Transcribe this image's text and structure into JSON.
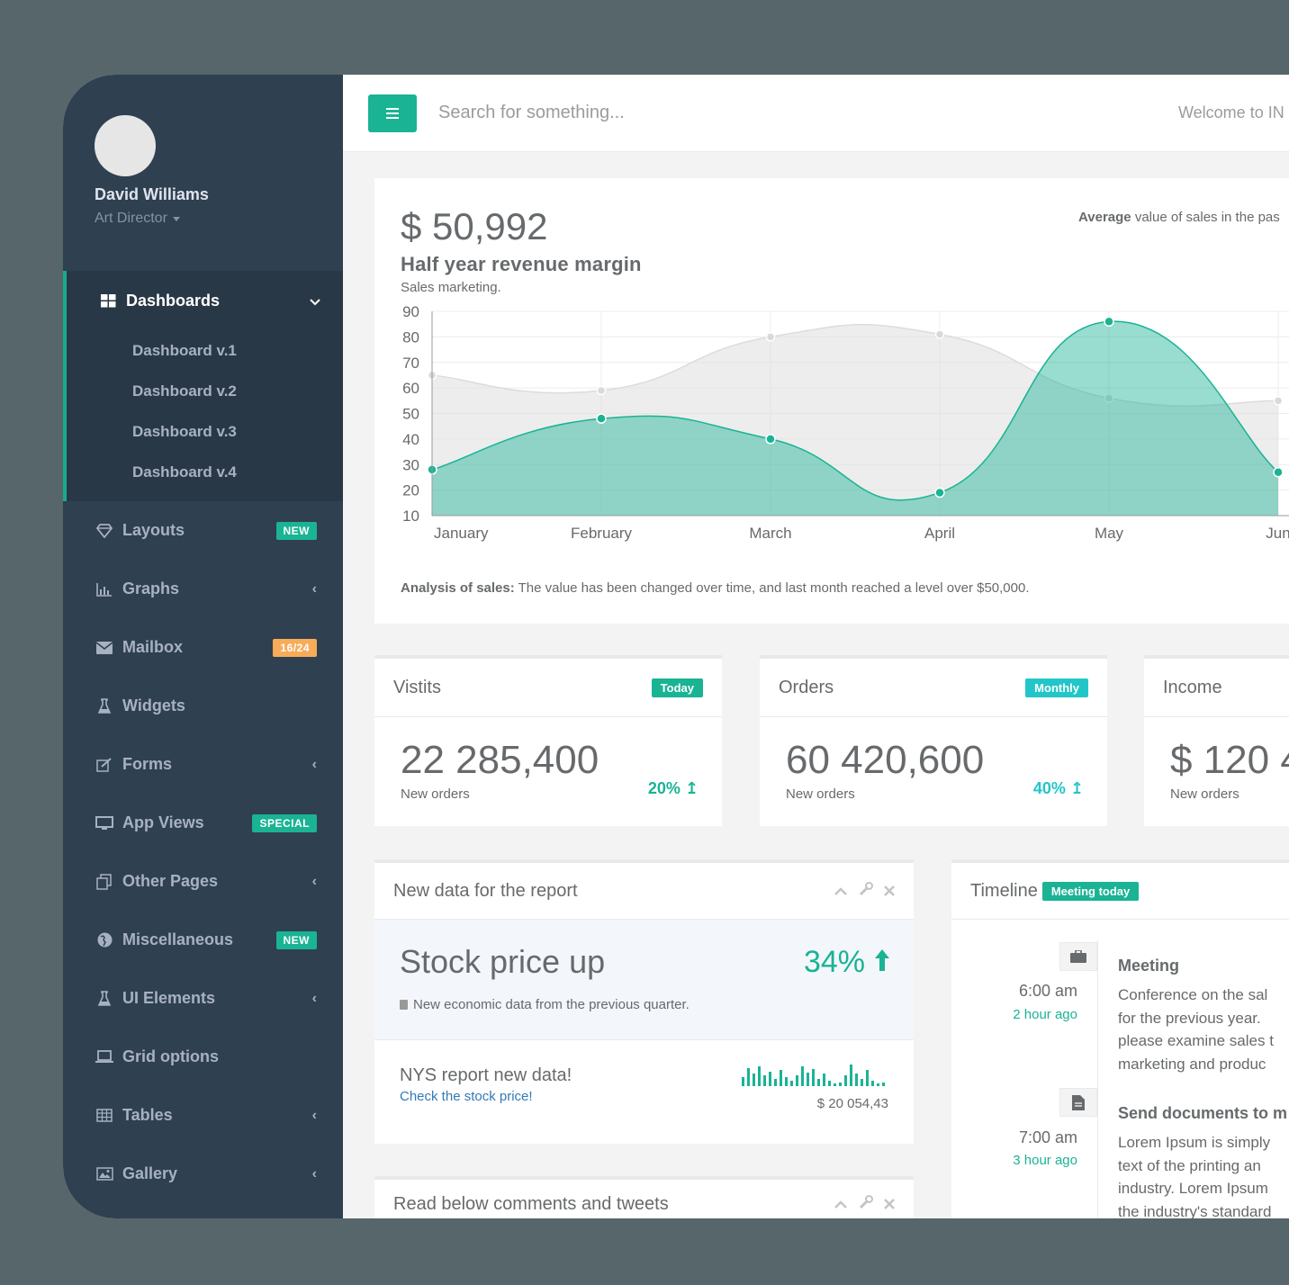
{
  "profile": {
    "name": "David Williams",
    "role": "Art Director"
  },
  "sidebar": {
    "active": {
      "label": "Dashboards",
      "icon": "dashboard-grid-icon",
      "children": [
        "Dashboard v.1",
        "Dashboard v.2",
        "Dashboard v.3",
        "Dashboard v.4"
      ]
    },
    "items": [
      {
        "label": "Layouts",
        "icon": "diamond-icon",
        "badge": "NEW"
      },
      {
        "label": "Graphs",
        "icon": "bar-chart-icon"
      },
      {
        "label": "Mailbox",
        "icon": "envelope-icon",
        "badge": "16/24"
      },
      {
        "label": "Widgets",
        "icon": "flask-icon"
      },
      {
        "label": "Forms",
        "icon": "edit-icon"
      },
      {
        "label": "App Views",
        "icon": "desktop-icon",
        "badge": "SPECIAL"
      },
      {
        "label": "Other Pages",
        "icon": "files-icon"
      },
      {
        "label": "Miscellaneous",
        "icon": "globe-icon",
        "badge": "NEW"
      },
      {
        "label": "UI Elements",
        "icon": "flask-icon"
      },
      {
        "label": "Grid options",
        "icon": "laptop-icon"
      },
      {
        "label": "Tables",
        "icon": "table-icon"
      },
      {
        "label": "Gallery",
        "icon": "picture-icon"
      }
    ]
  },
  "topbar": {
    "search_placeholder": "Search for something...",
    "welcome": "Welcome to IN"
  },
  "revenue": {
    "amount": "$ 50,992",
    "title": "Half year revenue margin",
    "subtitle": "Sales marketing.",
    "average_bold": "Average",
    "average_rest": " value of sales in the pas",
    "analysis_bold": "Analysis of sales:",
    "analysis_rest": " The value has been changed over time, and last month reached a level over $50,000."
  },
  "chart_data": {
    "type": "area",
    "categories": [
      "January",
      "February",
      "March",
      "April",
      "May",
      "Jun"
    ],
    "series": [
      {
        "values": [
          65,
          59,
          80,
          81,
          56,
          55
        ],
        "color": "#dedede"
      },
      {
        "values": [
          28,
          48,
          40,
          19,
          86,
          27
        ],
        "color": "#1ab394"
      }
    ],
    "yticks": [
      "10",
      "20",
      "30",
      "40",
      "50",
      "60",
      "70",
      "80",
      "90"
    ],
    "ylim": [
      10,
      90
    ],
    "grid": true
  },
  "stats": [
    {
      "title": "Vistits",
      "badge": "Today",
      "value": "22 285,400",
      "small": "New orders",
      "pct": "20%"
    },
    {
      "title": "Orders",
      "badge": "Monthly",
      "value": "60 420,600",
      "small": "New orders",
      "pct": "40%"
    },
    {
      "title": "Income",
      "value": "$ 120 4",
      "small": "New orders"
    }
  ],
  "report": {
    "title": "New data for the report",
    "stock_title": "Stock price up",
    "stock_pct": "34%",
    "stock_note": "New economic data from the previous quarter.",
    "nys_title": "NYS report new data!",
    "nys_link": "Check the stock price!",
    "nys_value": "$ 20 054,43"
  },
  "comments": {
    "title": "Read below comments and tweets"
  },
  "timeline": {
    "title": "Timeline",
    "badge": "Meeting today",
    "items": [
      {
        "time": "6:00 am",
        "ago": "2 hour ago",
        "icon": "briefcase-icon",
        "heading": "Meeting",
        "lines": [
          "Conference on the sal",
          "for the previous year.",
          "please examine sales t",
          "marketing and produc"
        ]
      },
      {
        "time": "7:00 am",
        "ago": "3 hour ago",
        "icon": "file-icon",
        "heading": "Send documents to m",
        "lines": [
          "Lorem Ipsum is simply",
          "text of the printing an",
          "industry. Lorem Ipsum",
          "the industry's standard"
        ]
      }
    ]
  },
  "colors": {
    "accent": "#1ab394",
    "sidebar": "#2f4050",
    "warning": "#f8ac59",
    "info": "#23c6c8"
  }
}
